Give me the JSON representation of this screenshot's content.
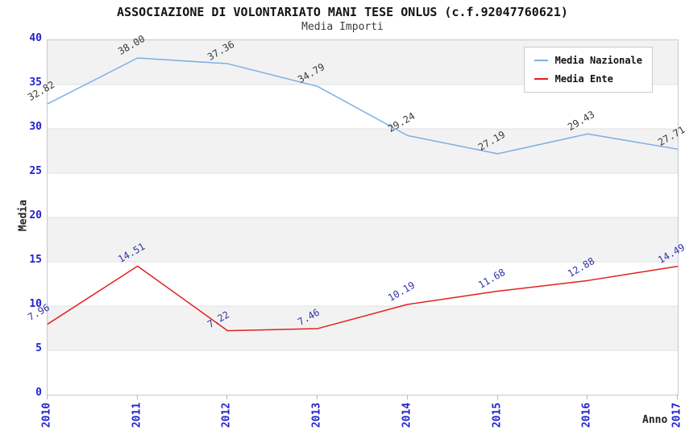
{
  "chart_data": {
    "type": "line",
    "title": "ASSOCIAZIONE DI VOLONTARIATO MANI TESE ONLUS (c.f.92047760621)",
    "subtitle": "Media Importi",
    "xlabel": "Anno",
    "ylabel": "Media",
    "categories": [
      "2010",
      "2011",
      "2012",
      "2013",
      "2014",
      "2015",
      "2016",
      "2017"
    ],
    "yticks": [
      0,
      5,
      10,
      15,
      20,
      25,
      30,
      35,
      40
    ],
    "ylim": [
      0,
      40
    ],
    "grid": "horizontal-gridlines-with-alternating-gray-bands",
    "legend_position": "top-right",
    "point_label_rotation_deg": -30,
    "series": [
      {
        "name": "Media Nazionale",
        "color": "#7dafe4",
        "label_color": "#3a3a3a",
        "values": [
          32.82,
          38.0,
          37.36,
          34.79,
          29.24,
          27.19,
          29.43,
          27.71
        ]
      },
      {
        "name": "Media Ente",
        "color": "#e42020",
        "label_color": "#3333aa",
        "values": [
          7.96,
          14.51,
          7.22,
          7.46,
          10.19,
          11.68,
          12.88,
          14.49
        ]
      }
    ],
    "colors": {
      "axis_tick_label": "#2222cc",
      "band_gray": "#f2f2f2",
      "gridline": "#e2e2e2",
      "plot_border": "#c8c8c8",
      "title": "#141414",
      "subtitle": "#3c3c3c"
    }
  }
}
